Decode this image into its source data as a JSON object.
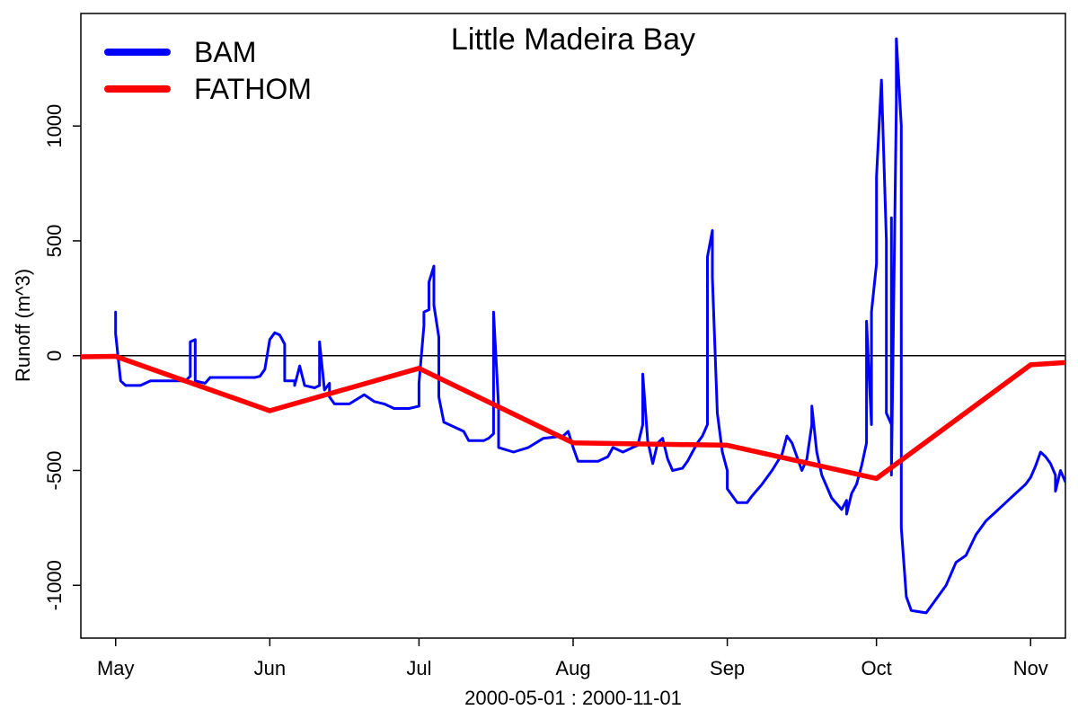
{
  "chart_data": {
    "type": "line",
    "title": "Little Madeira Bay",
    "xlabel": "2000-05-01 : 2000-11-01",
    "ylabel": "Runoff (m^3)",
    "x_unit": "date",
    "xlim": [
      "2000-04-24",
      "2000-11-08"
    ],
    "ylim": [
      -1230,
      1490
    ],
    "x_ticks": [
      {
        "date": "2000-05-01",
        "label": "May"
      },
      {
        "date": "2000-06-01",
        "label": "Jun"
      },
      {
        "date": "2000-07-01",
        "label": "Jul"
      },
      {
        "date": "2000-08-01",
        "label": "Aug"
      },
      {
        "date": "2000-09-01",
        "label": "Sep"
      },
      {
        "date": "2000-10-01",
        "label": "Oct"
      },
      {
        "date": "2000-11-01",
        "label": "Nov"
      }
    ],
    "y_ticks": [
      -1000,
      -500,
      0,
      500,
      1000
    ],
    "y_tick_labels": [
      "-1000",
      "-500",
      "0",
      "500",
      "1000"
    ],
    "reference_line_y": 0,
    "legend_position": "top-left",
    "series": [
      {
        "name": "BAM",
        "color": "#0000ff",
        "points": [
          [
            "2000-05-01",
            190
          ],
          [
            "2000-05-01",
            95
          ],
          [
            "2000-05-02",
            -110
          ],
          [
            "2000-05-03",
            -130
          ],
          [
            "2000-05-06",
            -130
          ],
          [
            "2000-05-08",
            -110
          ],
          [
            "2000-05-15",
            -110
          ],
          [
            "2000-05-16",
            -90
          ],
          [
            "2000-05-16",
            60
          ],
          [
            "2000-05-17",
            70
          ],
          [
            "2000-05-17",
            -110
          ],
          [
            "2000-05-19",
            -120
          ],
          [
            "2000-05-20",
            -95
          ],
          [
            "2000-05-29",
            -95
          ],
          [
            "2000-05-30",
            -90
          ],
          [
            "2000-05-31",
            -60
          ],
          [
            "2000-06-01",
            70
          ],
          [
            "2000-06-02",
            100
          ],
          [
            "2000-06-03",
            90
          ],
          [
            "2000-06-04",
            50
          ],
          [
            "2000-06-04",
            -110
          ],
          [
            "2000-06-06",
            -110
          ],
          [
            "2000-06-06",
            -130
          ],
          [
            "2000-06-07",
            -45
          ],
          [
            "2000-06-08",
            -130
          ],
          [
            "2000-06-10",
            -140
          ],
          [
            "2000-06-11",
            -130
          ],
          [
            "2000-06-11",
            60
          ],
          [
            "2000-06-12",
            -150
          ],
          [
            "2000-06-13",
            -120
          ],
          [
            "2000-06-13",
            -180
          ],
          [
            "2000-06-14",
            -210
          ],
          [
            "2000-06-17",
            -210
          ],
          [
            "2000-06-20",
            -170
          ],
          [
            "2000-06-22",
            -200
          ],
          [
            "2000-06-24",
            -210
          ],
          [
            "2000-06-26",
            -230
          ],
          [
            "2000-06-29",
            -230
          ],
          [
            "2000-07-01",
            -220
          ],
          [
            "2000-07-01",
            -120
          ],
          [
            "2000-07-02",
            130
          ],
          [
            "2000-07-02",
            190
          ],
          [
            "2000-07-03",
            200
          ],
          [
            "2000-07-03",
            320
          ],
          [
            "2000-07-04",
            390
          ],
          [
            "2000-07-04",
            220
          ],
          [
            "2000-07-05",
            80
          ],
          [
            "2000-07-05",
            -180
          ],
          [
            "2000-07-06",
            -290
          ],
          [
            "2000-07-08",
            -310
          ],
          [
            "2000-07-10",
            -330
          ],
          [
            "2000-07-11",
            -370
          ],
          [
            "2000-07-14",
            -370
          ],
          [
            "2000-07-15",
            -360
          ],
          [
            "2000-07-16",
            -340
          ],
          [
            "2000-07-16",
            190
          ],
          [
            "2000-07-17",
            -220
          ],
          [
            "2000-07-17",
            -400
          ],
          [
            "2000-07-20",
            -420
          ],
          [
            "2000-07-23",
            -400
          ],
          [
            "2000-07-26",
            -360
          ],
          [
            "2000-07-30",
            -350
          ],
          [
            "2000-07-31",
            -330
          ],
          [
            "2000-08-01",
            -400
          ],
          [
            "2000-08-02",
            -460
          ],
          [
            "2000-08-06",
            -460
          ],
          [
            "2000-08-08",
            -440
          ],
          [
            "2000-08-09",
            -400
          ],
          [
            "2000-08-11",
            -420
          ],
          [
            "2000-08-13",
            -400
          ],
          [
            "2000-08-14",
            -390
          ],
          [
            "2000-08-15",
            -300
          ],
          [
            "2000-08-15",
            -80
          ],
          [
            "2000-08-16",
            -370
          ],
          [
            "2000-08-17",
            -470
          ],
          [
            "2000-08-18",
            -380
          ],
          [
            "2000-08-19",
            -360
          ],
          [
            "2000-08-20",
            -450
          ],
          [
            "2000-08-21",
            -500
          ],
          [
            "2000-08-23",
            -490
          ],
          [
            "2000-08-24",
            -460
          ],
          [
            "2000-08-25",
            -420
          ],
          [
            "2000-08-26",
            -380
          ],
          [
            "2000-08-27",
            -350
          ],
          [
            "2000-08-28",
            -300
          ],
          [
            "2000-08-28",
            430
          ],
          [
            "2000-08-29",
            545
          ],
          [
            "2000-08-29",
            340
          ],
          [
            "2000-08-30",
            -250
          ],
          [
            "2000-08-31",
            -420
          ],
          [
            "2000-09-01",
            -500
          ],
          [
            "2000-09-01",
            -580
          ],
          [
            "2000-09-03",
            -640
          ],
          [
            "2000-09-05",
            -640
          ],
          [
            "2000-09-06",
            -610
          ],
          [
            "2000-09-08",
            -560
          ],
          [
            "2000-09-10",
            -500
          ],
          [
            "2000-09-12",
            -430
          ],
          [
            "2000-09-13",
            -350
          ],
          [
            "2000-09-14",
            -380
          ],
          [
            "2000-09-15",
            -440
          ],
          [
            "2000-09-16",
            -500
          ],
          [
            "2000-09-17",
            -450
          ],
          [
            "2000-09-18",
            -300
          ],
          [
            "2000-09-18",
            -220
          ],
          [
            "2000-09-19",
            -420
          ],
          [
            "2000-09-20",
            -520
          ],
          [
            "2000-09-22",
            -620
          ],
          [
            "2000-09-24",
            -670
          ],
          [
            "2000-09-25",
            -630
          ],
          [
            "2000-09-25",
            -690
          ],
          [
            "2000-09-26",
            -600
          ],
          [
            "2000-09-27",
            -560
          ],
          [
            "2000-09-28",
            -480
          ],
          [
            "2000-09-29",
            -380
          ],
          [
            "2000-09-29",
            150
          ],
          [
            "2000-09-30",
            -300
          ],
          [
            "2000-09-30",
            190
          ],
          [
            "2000-10-01",
            400
          ],
          [
            "2000-10-01",
            780
          ],
          [
            "2000-10-02",
            1200
          ],
          [
            "2000-10-03",
            500
          ],
          [
            "2000-10-03",
            -250
          ],
          [
            "2000-10-04",
            -300
          ],
          [
            "2000-10-04",
            600
          ],
          [
            "2000-10-04",
            -520
          ],
          [
            "2000-10-05",
            1100
          ],
          [
            "2000-10-05",
            1380
          ],
          [
            "2000-10-06",
            1000
          ],
          [
            "2000-10-06",
            200
          ],
          [
            "2000-10-06",
            -750
          ],
          [
            "2000-10-07",
            -1050
          ],
          [
            "2000-10-08",
            -1110
          ],
          [
            "2000-10-11",
            -1120
          ],
          [
            "2000-10-13",
            -1060
          ],
          [
            "2000-10-15",
            -1000
          ],
          [
            "2000-10-17",
            -900
          ],
          [
            "2000-10-19",
            -870
          ],
          [
            "2000-10-21",
            -780
          ],
          [
            "2000-10-23",
            -720
          ],
          [
            "2000-10-25",
            -680
          ],
          [
            "2000-10-27",
            -640
          ],
          [
            "2000-10-29",
            -600
          ],
          [
            "2000-10-31",
            -560
          ],
          [
            "2000-11-01",
            -530
          ],
          [
            "2000-11-02",
            -480
          ],
          [
            "2000-11-03",
            -420
          ],
          [
            "2000-11-04",
            -440
          ],
          [
            "2000-11-05",
            -470
          ],
          [
            "2000-11-06",
            -520
          ],
          [
            "2000-11-06",
            -590
          ],
          [
            "2000-11-07",
            -500
          ],
          [
            "2000-11-08",
            -550
          ]
        ]
      },
      {
        "name": "FATHOM",
        "color": "#ff0000",
        "points": [
          [
            "2000-04-24",
            -5
          ],
          [
            "2000-05-01",
            -3
          ],
          [
            "2000-06-01",
            -240
          ],
          [
            "2000-07-01",
            -55
          ],
          [
            "2000-08-01",
            -380
          ],
          [
            "2000-09-01",
            -390
          ],
          [
            "2000-10-01",
            -535
          ],
          [
            "2000-11-01",
            -40
          ],
          [
            "2000-11-08",
            -30
          ]
        ]
      }
    ]
  }
}
